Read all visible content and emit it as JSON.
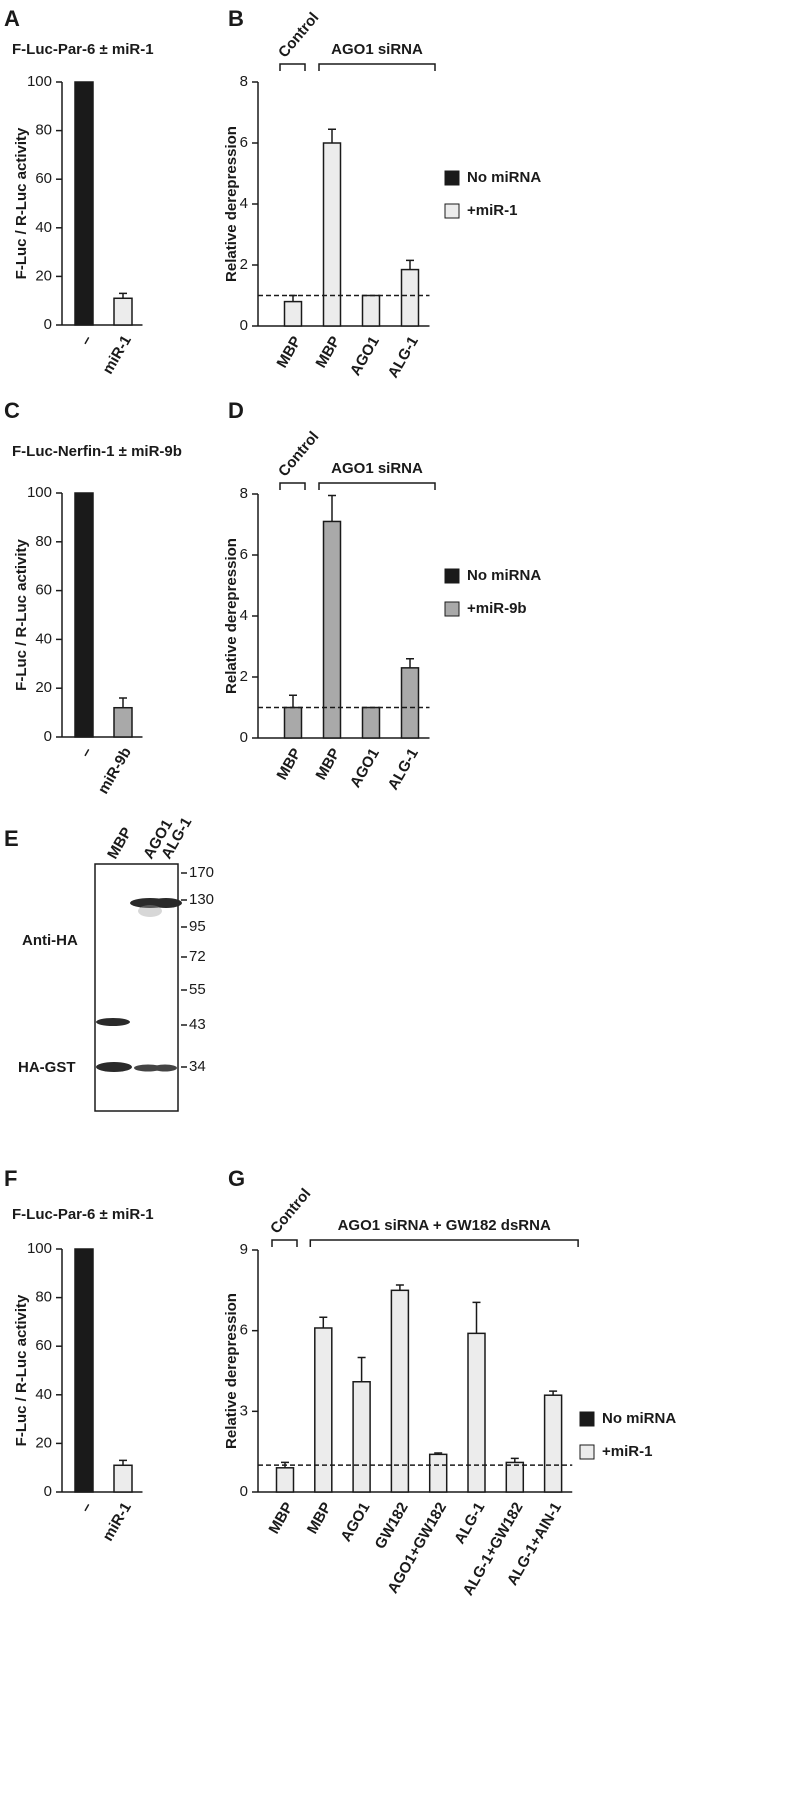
{
  "chart_data": [
    {
      "type": "bar",
      "label": "A",
      "title": "F-Luc-Par-6 ± miR-1",
      "ylabel": "F-Luc / R-Luc activity",
      "categories": [
        "–",
        "miR-1"
      ],
      "values": [
        100,
        11
      ],
      "errors": [
        null,
        2
      ],
      "colors": [
        "#1a1a1a",
        "#ececec"
      ],
      "ylim": [
        0,
        100
      ],
      "yticks": [
        0,
        20,
        40,
        60,
        80,
        100
      ]
    },
    {
      "type": "bar",
      "label": "B",
      "ylabel": "Relative derepression",
      "groups": [
        "Control",
        "AGO1 siRNA"
      ],
      "categories": [
        "MBP",
        "MBP",
        "AGO1",
        "ALG-1"
      ],
      "series": [
        {
          "name": "No miRNA",
          "color": "#1a1a1a",
          "values": [
            null,
            null,
            null,
            null
          ]
        },
        {
          "name": "+miR-1",
          "color": "#ececec",
          "values": [
            0.8,
            6.0,
            1.0,
            1.85
          ],
          "errors": [
            0.2,
            0.45,
            null,
            0.3
          ]
        }
      ],
      "reference_line": 1,
      "ylim": [
        0,
        8
      ],
      "yticks": [
        0,
        2,
        4,
        6,
        8
      ]
    },
    {
      "type": "bar",
      "label": "C",
      "title": "F-Luc-Nerfin-1 ± miR-9b",
      "ylabel": "F-Luc / R-Luc activity",
      "categories": [
        "–",
        "miR-9b"
      ],
      "values": [
        100,
        12
      ],
      "errors": [
        null,
        4
      ],
      "colors": [
        "#1a1a1a",
        "#a9a9a9"
      ],
      "ylim": [
        0,
        100
      ],
      "yticks": [
        0,
        20,
        40,
        60,
        80,
        100
      ]
    },
    {
      "type": "bar",
      "label": "D",
      "ylabel": "Relative derepression",
      "groups": [
        "Control",
        "AGO1 siRNA"
      ],
      "categories": [
        "MBP",
        "MBP",
        "AGO1",
        "ALG-1"
      ],
      "series": [
        {
          "name": "No miRNA",
          "color": "#1a1a1a",
          "values": [
            null,
            null,
            null,
            null
          ]
        },
        {
          "name": "+miR-9b",
          "color": "#a9a9a9",
          "values": [
            1.0,
            7.1,
            1.0,
            2.3
          ],
          "errors": [
            0.4,
            0.85,
            null,
            0.3
          ]
        }
      ],
      "reference_line": 1,
      "ylim": [
        0,
        8
      ],
      "yticks": [
        0,
        2,
        4,
        6,
        8
      ]
    },
    {
      "type": "bar",
      "label": "F",
      "title": "F-Luc-Par-6 ± miR-1",
      "ylabel": "F-Luc / R-Luc activity",
      "categories": [
        "–",
        "miR-1"
      ],
      "values": [
        100,
        11
      ],
      "errors": [
        null,
        2
      ],
      "colors": [
        "#1a1a1a",
        "#ececec"
      ],
      "ylim": [
        0,
        100
      ],
      "yticks": [
        0,
        20,
        40,
        60,
        80,
        100
      ]
    },
    {
      "type": "bar",
      "label": "G",
      "ylabel": "Relative derepression",
      "groups": [
        "Control",
        "AGO1 siRNA + GW182 dsRNA"
      ],
      "categories": [
        "MBP",
        "MBP",
        "AGO1",
        "GW182",
        "AGO1+GW182",
        "ALG-1",
        "ALG-1+GW182",
        "ALG-1+AIN-1"
      ],
      "series": [
        {
          "name": "No miRNA",
          "color": "#1a1a1a",
          "values": [
            null,
            null,
            null,
            null,
            null,
            null,
            null,
            null
          ]
        },
        {
          "name": "+miR-1",
          "color": "#ececec",
          "values": [
            0.9,
            6.1,
            4.1,
            7.5,
            1.4,
            5.9,
            1.1,
            3.6
          ],
          "errors": [
            0.2,
            0.4,
            0.9,
            0.2,
            0.05,
            1.15,
            0.15,
            0.15
          ]
        }
      ],
      "reference_line": 1,
      "ylim": [
        0,
        9
      ],
      "yticks": [
        0,
        3,
        6,
        9
      ]
    }
  ],
  "blot": {
    "label": "E",
    "lanes": [
      "MBP",
      "AGO1",
      "ALG-1"
    ],
    "markers": [
      170,
      130,
      95,
      72,
      55,
      43,
      34
    ],
    "bands": [
      "Anti-HA",
      "HA-GST"
    ]
  }
}
